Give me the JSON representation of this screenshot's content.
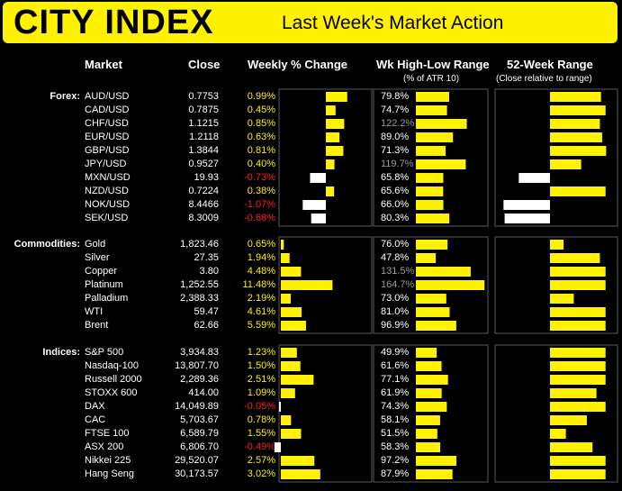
{
  "header": {
    "logo": "CITY INDEX",
    "title": "Last Week's Market Action"
  },
  "columns": {
    "market": "Market",
    "close": "Close",
    "weekly": "Weekly % Change",
    "wk_range": "Wk High-Low Range",
    "wk_range_sub": "(% of ATR 10)",
    "range52": "52-Week Range",
    "range52_sub": "(Close relative to range)"
  },
  "colors": {
    "accent": "#fff200",
    "negative": "#ff2020",
    "over_atr": "#9a9a9a"
  },
  "chart_data": {
    "type": "table",
    "sections": [
      {
        "label": "Forex:",
        "rows": [
          {
            "name": "AUD/USD",
            "close": "0.7753",
            "chg": "0.99%",
            "chg_val": 0.99,
            "atr": "79.8%",
            "atr_val": 79.8,
            "r52": 0.9
          },
          {
            "name": "CAD/USD",
            "close": "0.7875",
            "chg": "0.45%",
            "chg_val": 0.45,
            "atr": "74.7%",
            "atr_val": 74.7,
            "r52": 0.98
          },
          {
            "name": "CHF/USD",
            "close": "1.1215",
            "chg": "0.85%",
            "chg_val": 0.85,
            "atr": "122.2%",
            "atr_val": 122.2,
            "r52": 0.88
          },
          {
            "name": "EUR/USD",
            "close": "1.2118",
            "chg": "0.63%",
            "chg_val": 0.63,
            "atr": "89.0%",
            "atr_val": 89.0,
            "r52": 0.92
          },
          {
            "name": "GBP/USD",
            "close": "1.3844",
            "chg": "0.81%",
            "chg_val": 0.81,
            "atr": "71.3%",
            "atr_val": 71.3,
            "r52": 0.99
          },
          {
            "name": "JPY/USD",
            "close": "0.9527",
            "chg": "0.40%",
            "chg_val": 0.4,
            "atr": "119.7%",
            "atr_val": 119.7,
            "r52": 0.55
          },
          {
            "name": "MXN/USD",
            "close": "19.93",
            "chg": "-0.73%",
            "chg_val": -0.73,
            "atr": "65.8%",
            "atr_val": 65.8,
            "r52": -0.55
          },
          {
            "name": "NZD/USD",
            "close": "0.7224",
            "chg": "0.38%",
            "chg_val": 0.38,
            "atr": "65.6%",
            "atr_val": 65.6,
            "r52": 0.98
          },
          {
            "name": "NOK/USD",
            "close": "8.4466",
            "chg": "-1.07%",
            "chg_val": -1.07,
            "atr": "66.0%",
            "atr_val": 66.0,
            "r52": -0.82
          },
          {
            "name": "SEK/USD",
            "close": "8.3009",
            "chg": "-0.68%",
            "chg_val": -0.68,
            "atr": "80.3%",
            "atr_val": 80.3,
            "r52": -0.8
          }
        ]
      },
      {
        "label": "Commodities:",
        "rows": [
          {
            "name": "Gold",
            "close": "1,823.46",
            "chg": "0.65%",
            "chg_val": 0.65,
            "atr": "76.0%",
            "atr_val": 76.0,
            "r52": 0.24
          },
          {
            "name": "Silver",
            "close": "27.35",
            "chg": "1.94%",
            "chg_val": 1.94,
            "atr": "47.8%",
            "atr_val": 47.8,
            "r52": 0.88
          },
          {
            "name": "Copper",
            "close": "3.80",
            "chg": "4.48%",
            "chg_val": 4.48,
            "atr": "131.5%",
            "atr_val": 131.5,
            "r52": 0.98
          },
          {
            "name": "Platinum",
            "close": "1,252.55",
            "chg": "11.48%",
            "chg_val": 11.48,
            "atr": "164.7%",
            "atr_val": 164.7,
            "r52": 0.98
          },
          {
            "name": "Palladium",
            "close": "2,388.33",
            "chg": "2.19%",
            "chg_val": 2.19,
            "atr": "73.0%",
            "atr_val": 73.0,
            "r52": 0.42
          },
          {
            "name": "WTI",
            "close": "59.47",
            "chg": "4.61%",
            "chg_val": 4.61,
            "atr": "81.0%",
            "atr_val": 81.0,
            "r52": 0.98
          },
          {
            "name": "Brent",
            "close": "62.66",
            "chg": "5.59%",
            "chg_val": 5.59,
            "atr": "96.9%",
            "atr_val": 96.9,
            "r52": 0.98
          }
        ]
      },
      {
        "label": "Indices:",
        "rows": [
          {
            "name": "S&P 500",
            "close": "3,934.83",
            "chg": "1.23%",
            "chg_val": 1.23,
            "atr": "49.9%",
            "atr_val": 49.9,
            "r52": 0.98
          },
          {
            "name": "Nasdaq-100",
            "close": "13,807.70",
            "chg": "1.50%",
            "chg_val": 1.5,
            "atr": "61.6%",
            "atr_val": 61.6,
            "r52": 0.98
          },
          {
            "name": "Russell 2000",
            "close": "2,289.36",
            "chg": "2.51%",
            "chg_val": 2.51,
            "atr": "77.1%",
            "atr_val": 77.1,
            "r52": 0.98
          },
          {
            "name": "STOXX 600",
            "close": "414.00",
            "chg": "1.09%",
            "chg_val": 1.09,
            "atr": "61.9%",
            "atr_val": 61.9,
            "r52": 0.82
          },
          {
            "name": "DAX",
            "close": "14,049.89",
            "chg": "-0.05%",
            "chg_val": -0.05,
            "atr": "74.3%",
            "atr_val": 74.3,
            "r52": 0.98
          },
          {
            "name": "CAC",
            "close": "5,703.67",
            "chg": "0.78%",
            "chg_val": 0.78,
            "atr": "58.1%",
            "atr_val": 58.1,
            "r52": 0.65
          },
          {
            "name": "FTSE 100",
            "close": "6,589.79",
            "chg": "1.55%",
            "chg_val": 1.55,
            "atr": "51.5%",
            "atr_val": 51.5,
            "r52": 0.28
          },
          {
            "name": "ASX 200",
            "close": "6,806.70",
            "chg": "-0.49%",
            "chg_val": -0.49,
            "atr": "58.3%",
            "atr_val": 58.3,
            "r52": 0.75
          },
          {
            "name": "Nikkei 225",
            "close": "29,520.07",
            "chg": "2.57%",
            "chg_val": 2.57,
            "atr": "97.2%",
            "atr_val": 97.2,
            "r52": 0.98
          },
          {
            "name": "Hang Seng",
            "close": "30,173.57",
            "chg": "3.02%",
            "chg_val": 3.02,
            "atr": "87.9%",
            "atr_val": 87.9,
            "r52": 0.98
          }
        ]
      }
    ]
  }
}
